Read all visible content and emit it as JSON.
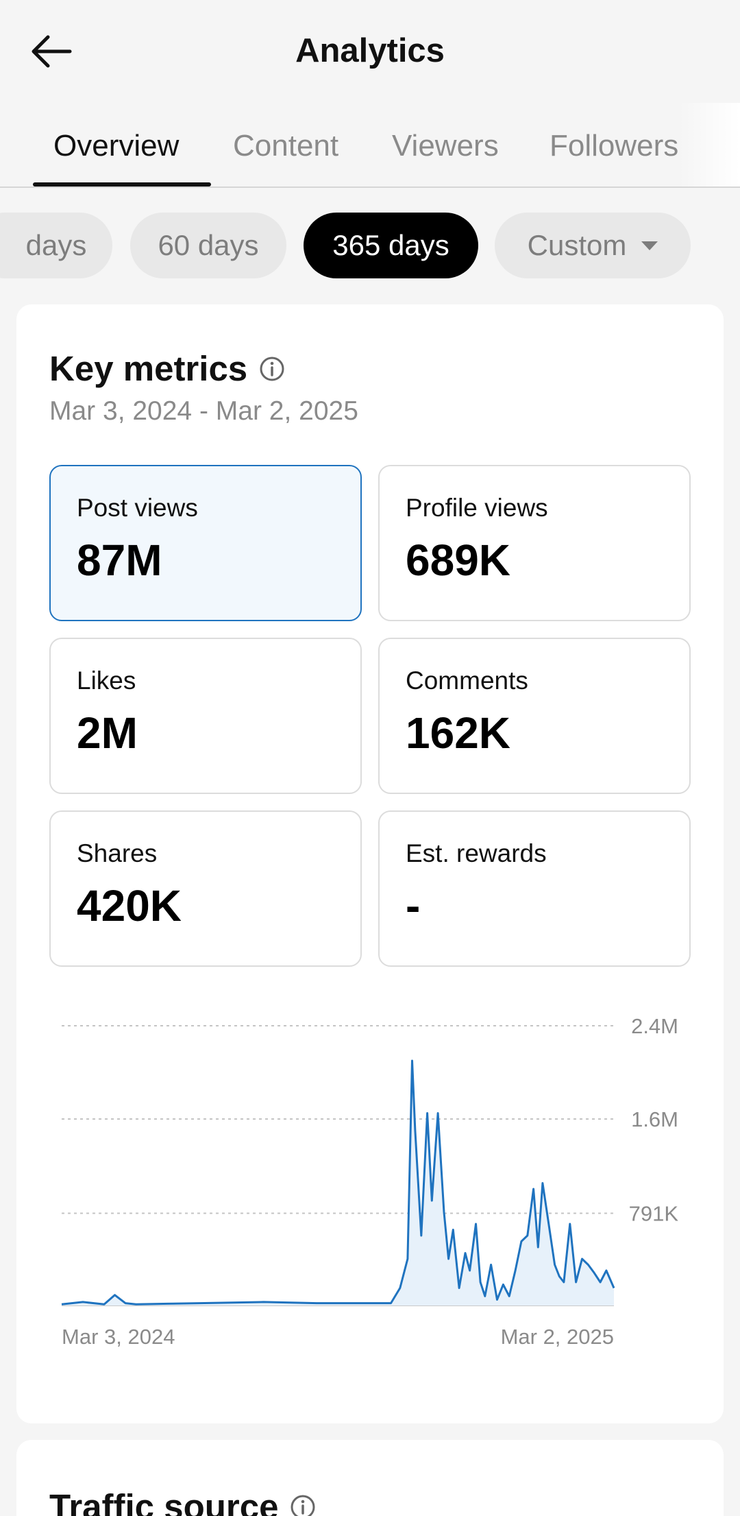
{
  "header": {
    "title": "Analytics",
    "back_icon": "arrow-left-icon"
  },
  "tabs": [
    {
      "label": "Overview",
      "active": true
    },
    {
      "label": "Content",
      "active": false
    },
    {
      "label": "Viewers",
      "active": false
    },
    {
      "label": "Followers",
      "active": false
    }
  ],
  "ranges": [
    {
      "label": "days",
      "active": false
    },
    {
      "label": "60 days",
      "active": false
    },
    {
      "label": "365 days",
      "active": true
    },
    {
      "label": "Custom",
      "active": false
    }
  ],
  "key_metrics": {
    "title": "Key metrics",
    "date_range": "Mar 3, 2024 - Mar 2, 2025",
    "metrics": [
      {
        "label": "Post views",
        "value": "87M",
        "selected": true
      },
      {
        "label": "Profile views",
        "value": "689K",
        "selected": false
      },
      {
        "label": "Likes",
        "value": "2M",
        "selected": false
      },
      {
        "label": "Comments",
        "value": "162K",
        "selected": false
      },
      {
        "label": "Shares",
        "value": "420K",
        "selected": false
      },
      {
        "label": "Est. rewards",
        "value": "-",
        "selected": false
      }
    ]
  },
  "chart_data": {
    "type": "line",
    "x_start_label": "Mar 3, 2024",
    "x_end_label": "Mar 2, 2025",
    "y_ticks": [
      {
        "value": 2400000,
        "label": "2.4M"
      },
      {
        "value": 1600000,
        "label": "1.6M"
      },
      {
        "value": 791000,
        "label": "791K"
      }
    ],
    "ylim": [
      0,
      2400000
    ],
    "grid": true,
    "line_color": "#1f73bf",
    "fill_color": "#e7f1fa",
    "x": [
      "2024-03-03",
      "2024-03-17",
      "2024-03-31",
      "2024-04-07",
      "2024-04-14",
      "2024-04-21",
      "2024-05-12",
      "2024-06-02",
      "2024-07-14",
      "2024-08-18",
      "2024-09-22",
      "2024-10-06",
      "2024-10-12",
      "2024-10-17",
      "2024-10-20",
      "2024-10-22",
      "2024-10-26",
      "2024-10-30",
      "2024-11-02",
      "2024-11-06",
      "2024-11-10",
      "2024-11-13",
      "2024-11-16",
      "2024-11-20",
      "2024-11-24",
      "2024-11-27",
      "2024-12-01",
      "2024-12-04",
      "2024-12-07",
      "2024-12-11",
      "2024-12-15",
      "2024-12-19",
      "2024-12-23",
      "2024-12-27",
      "2024-12-31",
      "2025-01-04",
      "2025-01-08",
      "2025-01-11",
      "2025-01-14",
      "2025-01-18",
      "2025-01-22",
      "2025-01-25",
      "2025-01-28",
      "2025-02-01",
      "2025-02-05",
      "2025-02-09",
      "2025-02-13",
      "2025-02-17",
      "2025-02-21",
      "2025-02-25",
      "2025-03-02"
    ],
    "y": [
      10000,
      30000,
      10000,
      90000,
      20000,
      10000,
      15000,
      20000,
      30000,
      20000,
      20000,
      20000,
      150000,
      400000,
      2100000,
      1500000,
      600000,
      1650000,
      900000,
      1650000,
      800000,
      400000,
      650000,
      150000,
      450000,
      300000,
      700000,
      200000,
      80000,
      350000,
      50000,
      180000,
      80000,
      300000,
      550000,
      600000,
      1000000,
      500000,
      1050000,
      700000,
      350000,
      250000,
      200000,
      700000,
      200000,
      400000,
      350000,
      280000,
      200000,
      300000,
      150000
    ]
  },
  "traffic_source": {
    "title": "Traffic source"
  }
}
